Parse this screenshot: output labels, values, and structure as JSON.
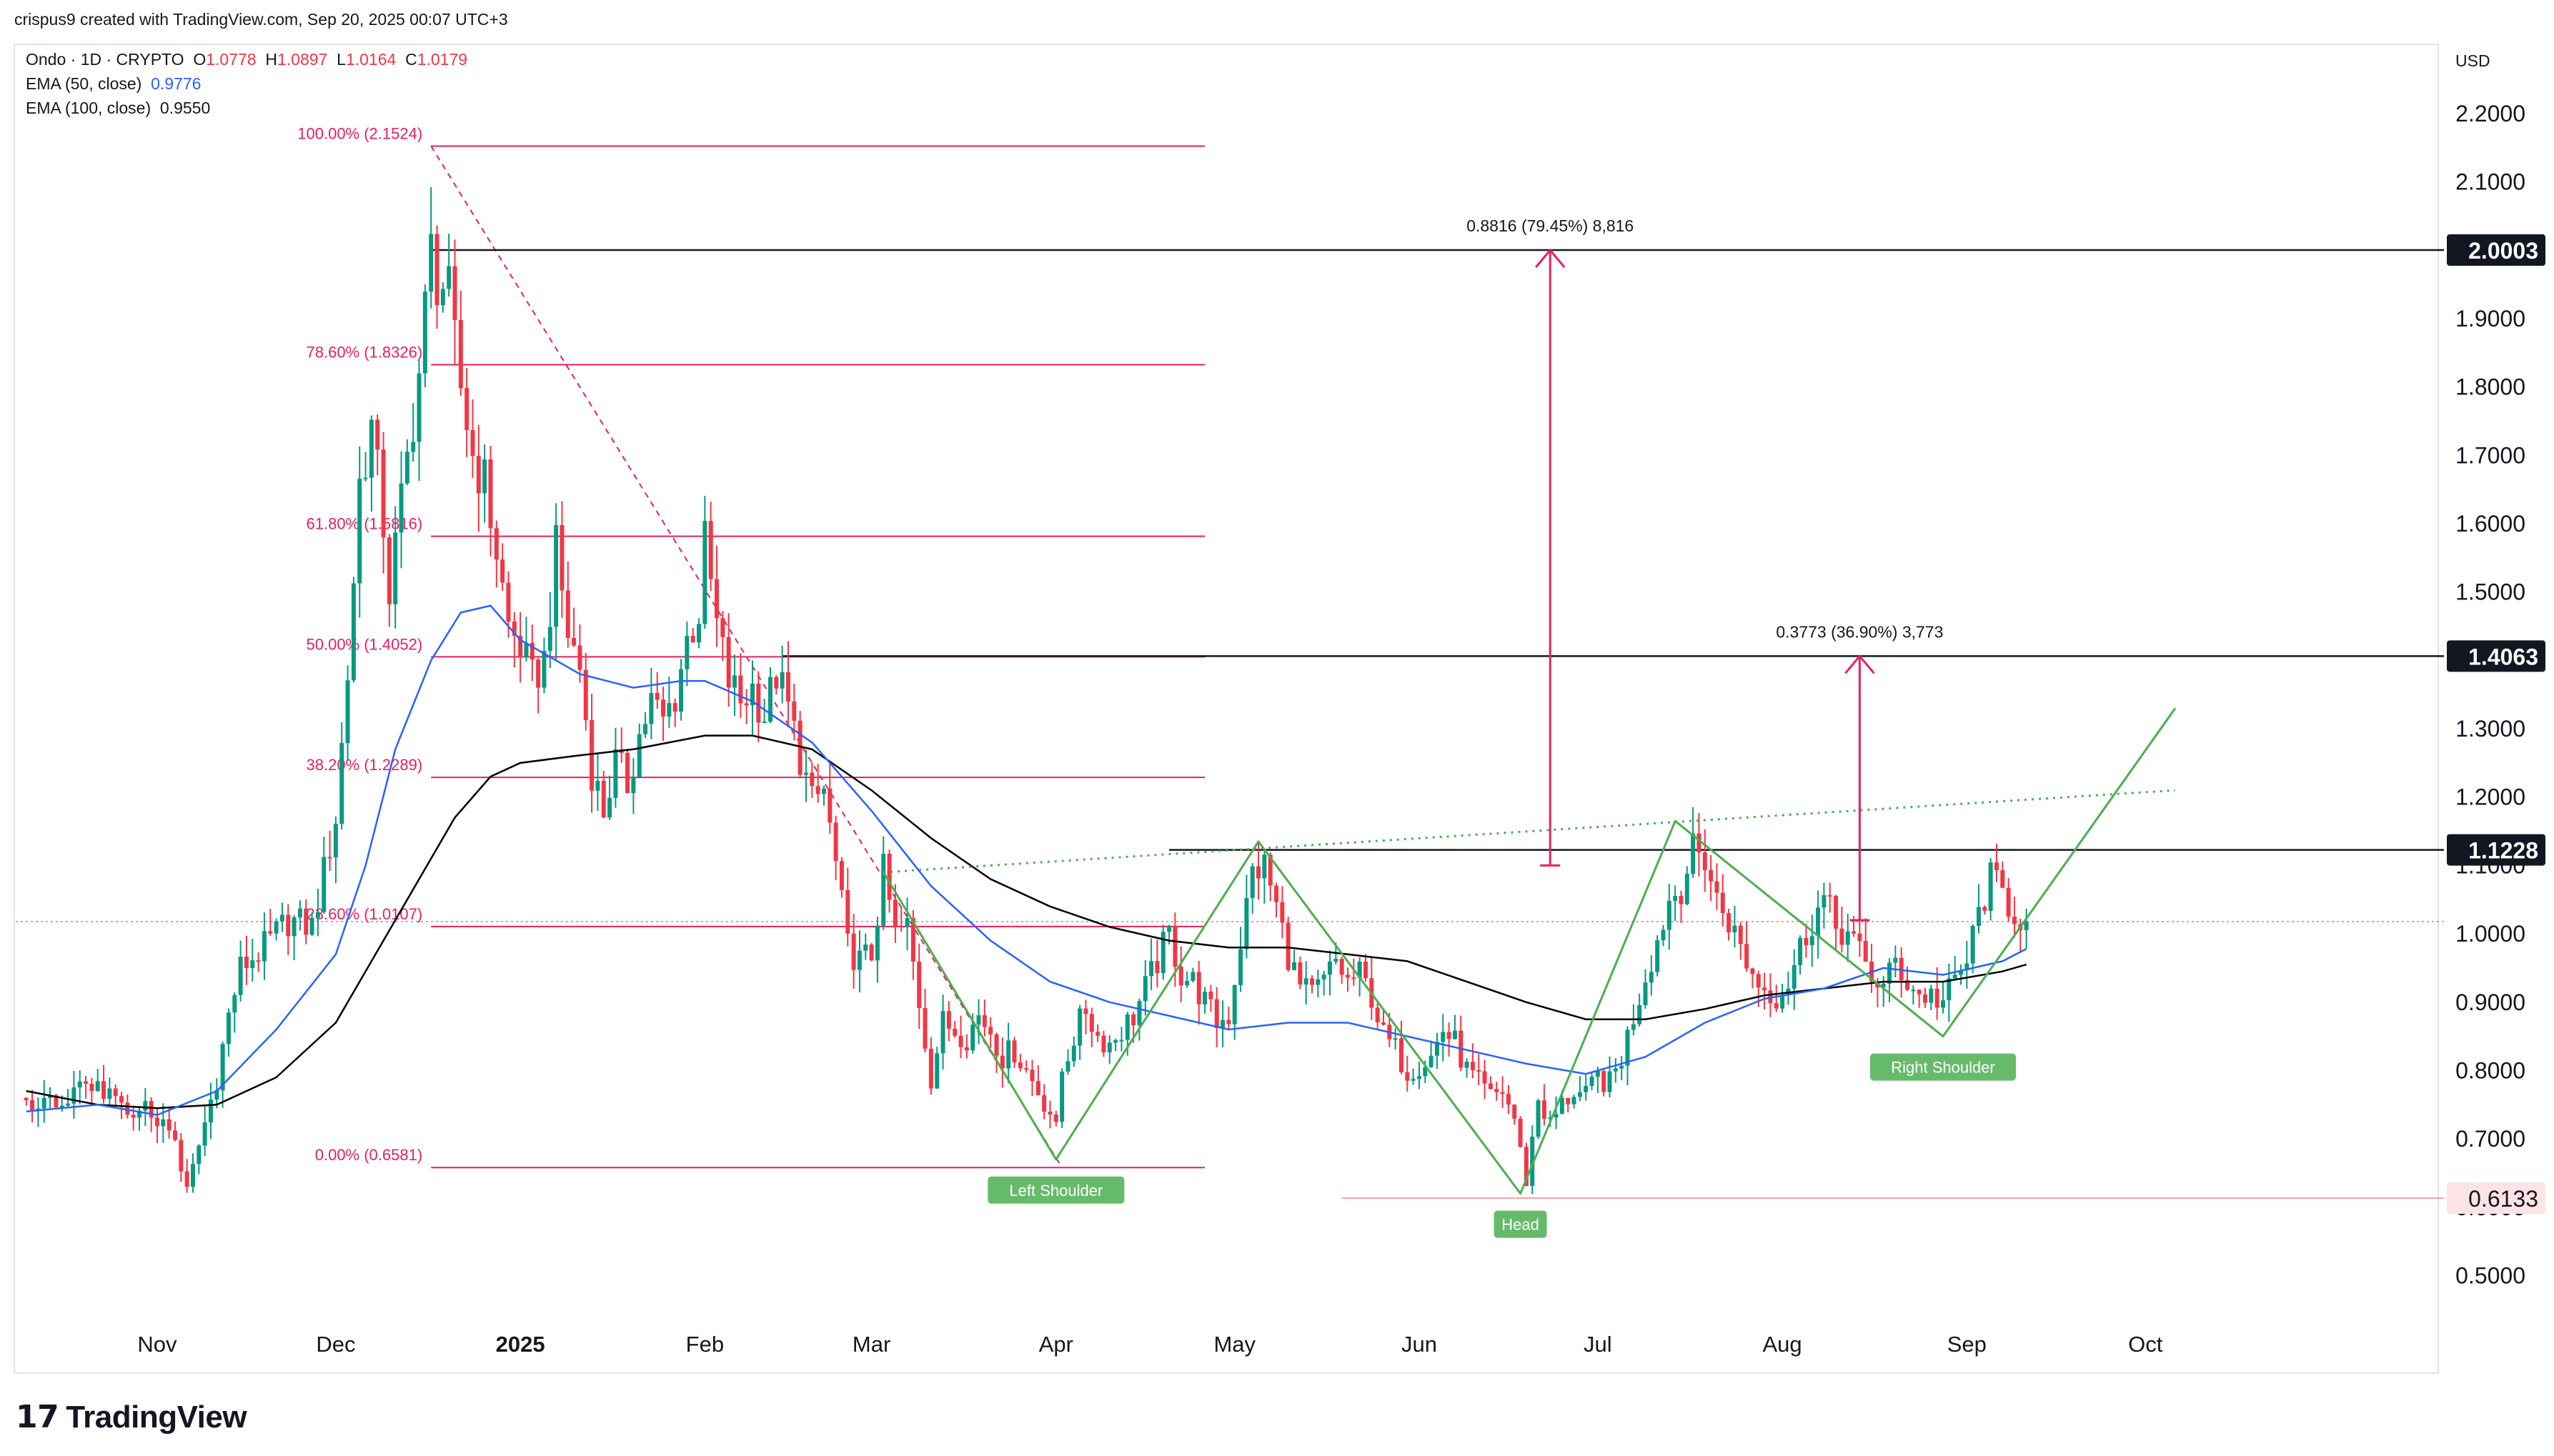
{
  "meta": {
    "created_by": "crispus9 created with TradingView.com, Sep 20, 2025 00:07 UTC+3",
    "symbol_line": "Ondo · 1D · CRYPTO",
    "ohlc": {
      "o_label": "O",
      "o": "1.0778",
      "h_label": "H",
      "h": "1.0897",
      "l_label": "L",
      "l": "1.0164",
      "c_label": "C",
      "c": "1.0179"
    },
    "ema50": {
      "label": "EMA (50, close)",
      "value": "0.9776"
    },
    "ema100": {
      "label": "EMA (100, close)",
      "value": "0.9550"
    },
    "currency": "USD",
    "brand": "TradingView"
  },
  "colors": {
    "up": "#089981",
    "down": "#f23645",
    "fib": "#e91e63",
    "ema50": "#2962ff",
    "ema100": "#000000",
    "pattern": "#4caf50",
    "label_bg": "#66bb6a",
    "axis_text": "#131722"
  },
  "chart_data": {
    "type": "candlestick",
    "title": "Ondo · 1D · CRYPTO",
    "xlabel": "",
    "ylabel": "USD",
    "ylim": [
      0.42,
      2.27
    ],
    "y_ticks": [
      "2.2000",
      "2.1000",
      "2.0000",
      "1.9000",
      "1.8000",
      "1.7000",
      "1.6000",
      "1.5000",
      "1.4000",
      "1.3000",
      "1.2000",
      "1.1000",
      "1.0000",
      "0.9000",
      "0.8000",
      "0.7000",
      "0.6000",
      "0.5000"
    ],
    "x_ticks": [
      {
        "label": "Nov",
        "day": 0
      },
      {
        "label": "Dec",
        "day": 30
      },
      {
        "label": "2025",
        "day": 61
      },
      {
        "label": "Feb",
        "day": 92
      },
      {
        "label": "Mar",
        "day": 120
      },
      {
        "label": "Apr",
        "day": 151
      },
      {
        "label": "May",
        "day": 181
      },
      {
        "label": "Jun",
        "day": 212
      },
      {
        "label": "Jul",
        "day": 242
      },
      {
        "label": "Aug",
        "day": 273
      },
      {
        "label": "Sep",
        "day": 304
      },
      {
        "label": "Oct",
        "day": 334
      }
    ],
    "close_path": [
      [
        -22,
        0.76
      ],
      [
        -16,
        0.74
      ],
      [
        -12,
        0.79
      ],
      [
        -8,
        0.76
      ],
      [
        -4,
        0.72
      ],
      [
        -2,
        0.75
      ],
      [
        3,
        0.7
      ],
      [
        5,
        0.62
      ],
      [
        7,
        0.69
      ],
      [
        10,
        0.79
      ],
      [
        12,
        0.88
      ],
      [
        14,
        0.95
      ],
      [
        18,
        0.98
      ],
      [
        22,
        1.02
      ],
      [
        26,
        1.01
      ],
      [
        30,
        1.17
      ],
      [
        32,
        1.38
      ],
      [
        34,
        1.66
      ],
      [
        36,
        1.74
      ],
      [
        38,
        1.6
      ],
      [
        39,
        1.5
      ],
      [
        41,
        1.63
      ],
      [
        44,
        1.82
      ],
      [
        46,
        2.0
      ],
      [
        47,
        1.96
      ],
      [
        48,
        1.95
      ],
      [
        49,
        1.93
      ],
      [
        50,
        1.86
      ],
      [
        51,
        1.8
      ],
      [
        53,
        1.7
      ],
      [
        55,
        1.66
      ],
      [
        57,
        1.56
      ],
      [
        59,
        1.45
      ],
      [
        61,
        1.42
      ],
      [
        63,
        1.37
      ],
      [
        65,
        1.4
      ],
      [
        67,
        1.56
      ],
      [
        69,
        1.44
      ],
      [
        71,
        1.39
      ],
      [
        73,
        1.24
      ],
      [
        75,
        1.18
      ],
      [
        77,
        1.25
      ],
      [
        79,
        1.22
      ],
      [
        81,
        1.29
      ],
      [
        83,
        1.34
      ],
      [
        85,
        1.31
      ],
      [
        87,
        1.35
      ],
      [
        89,
        1.43
      ],
      [
        91,
        1.47
      ],
      [
        92,
        1.57
      ],
      [
        94,
        1.45
      ],
      [
        96,
        1.37
      ],
      [
        98,
        1.34
      ],
      [
        100,
        1.36
      ],
      [
        102,
        1.32
      ],
      [
        104,
        1.38
      ],
      [
        106,
        1.33
      ],
      [
        108,
        1.26
      ],
      [
        110,
        1.19
      ],
      [
        112,
        1.21
      ],
      [
        114,
        1.1
      ],
      [
        116,
        0.98
      ],
      [
        118,
        0.96
      ],
      [
        120,
        0.97
      ],
      [
        122,
        1.09
      ],
      [
        124,
        1.0
      ],
      [
        126,
        1.01
      ],
      [
        128,
        0.9
      ],
      [
        130,
        0.79
      ],
      [
        132,
        0.87
      ],
      [
        134,
        0.86
      ],
      [
        136,
        0.85
      ],
      [
        138,
        0.88
      ],
      [
        140,
        0.86
      ],
      [
        142,
        0.82
      ],
      [
        144,
        0.83
      ],
      [
        146,
        0.8
      ],
      [
        148,
        0.77
      ],
      [
        150,
        0.74
      ],
      [
        151,
        0.71
      ],
      [
        152,
        0.8
      ],
      [
        154,
        0.85
      ],
      [
        156,
        0.89
      ],
      [
        158,
        0.85
      ],
      [
        160,
        0.84
      ],
      [
        162,
        0.86
      ],
      [
        164,
        0.88
      ],
      [
        166,
        0.92
      ],
      [
        168,
        0.96
      ],
      [
        170,
        1.0
      ],
      [
        172,
        0.94
      ],
      [
        174,
        0.93
      ],
      [
        176,
        0.9
      ],
      [
        178,
        0.87
      ],
      [
        180,
        0.88
      ],
      [
        182,
        0.99
      ],
      [
        184,
        1.09
      ],
      [
        186,
        1.1
      ],
      [
        188,
        1.04
      ],
      [
        190,
        0.97
      ],
      [
        192,
        0.92
      ],
      [
        194,
        0.91
      ],
      [
        196,
        0.93
      ],
      [
        198,
        0.96
      ],
      [
        200,
        0.93
      ],
      [
        202,
        0.94
      ],
      [
        204,
        0.91
      ],
      [
        206,
        0.85
      ],
      [
        208,
        0.83
      ],
      [
        210,
        0.8
      ],
      [
        212,
        0.81
      ],
      [
        214,
        0.82
      ],
      [
        216,
        0.86
      ],
      [
        218,
        0.84
      ],
      [
        220,
        0.8
      ],
      [
        222,
        0.78
      ],
      [
        224,
        0.76
      ],
      [
        226,
        0.77
      ],
      [
        228,
        0.73
      ],
      [
        229,
        0.68
      ],
      [
        230,
        0.64
      ],
      [
        232,
        0.76
      ],
      [
        234,
        0.72
      ],
      [
        236,
        0.75
      ],
      [
        238,
        0.77
      ],
      [
        240,
        0.76
      ],
      [
        242,
        0.79
      ],
      [
        244,
        0.78
      ],
      [
        246,
        0.82
      ],
      [
        248,
        0.88
      ],
      [
        250,
        0.94
      ],
      [
        252,
        0.99
      ],
      [
        254,
        1.05
      ],
      [
        256,
        1.07
      ],
      [
        258,
        1.12
      ],
      [
        260,
        1.11
      ],
      [
        262,
        1.05
      ],
      [
        264,
        1.02
      ],
      [
        266,
        0.98
      ],
      [
        268,
        0.94
      ],
      [
        270,
        0.92
      ],
      [
        272,
        0.91
      ],
      [
        274,
        0.93
      ],
      [
        276,
        0.98
      ],
      [
        278,
        1.02
      ],
      [
        280,
        1.05
      ],
      [
        282,
        1.01
      ],
      [
        284,
        1.0
      ],
      [
        286,
        0.97
      ],
      [
        288,
        0.94
      ],
      [
        290,
        0.92
      ],
      [
        292,
        0.96
      ],
      [
        294,
        0.93
      ],
      [
        296,
        0.91
      ],
      [
        298,
        0.91
      ],
      [
        300,
        0.9
      ],
      [
        302,
        0.93
      ],
      [
        304,
        0.96
      ],
      [
        306,
        1.03
      ],
      [
        308,
        1.08
      ],
      [
        310,
        1.06
      ],
      [
        312,
        1.03
      ],
      [
        314,
        1.02
      ]
    ],
    "ema50_path": [
      [
        -22,
        0.74
      ],
      [
        -10,
        0.75
      ],
      [
        0,
        0.735
      ],
      [
        10,
        0.77
      ],
      [
        20,
        0.86
      ],
      [
        30,
        0.97
      ],
      [
        35,
        1.1
      ],
      [
        40,
        1.27
      ],
      [
        46,
        1.4
      ],
      [
        51,
        1.47
      ],
      [
        56,
        1.48
      ],
      [
        61,
        1.43
      ],
      [
        71,
        1.38
      ],
      [
        80,
        1.36
      ],
      [
        88,
        1.37
      ],
      [
        92,
        1.37
      ],
      [
        100,
        1.34
      ],
      [
        110,
        1.28
      ],
      [
        120,
        1.18
      ],
      [
        130,
        1.07
      ],
      [
        140,
        0.99
      ],
      [
        150,
        0.93
      ],
      [
        160,
        0.9
      ],
      [
        170,
        0.88
      ],
      [
        180,
        0.86
      ],
      [
        190,
        0.87
      ],
      [
        200,
        0.87
      ],
      [
        210,
        0.85
      ],
      [
        220,
        0.83
      ],
      [
        230,
        0.81
      ],
      [
        240,
        0.795
      ],
      [
        250,
        0.82
      ],
      [
        260,
        0.87
      ],
      [
        270,
        0.905
      ],
      [
        280,
        0.92
      ],
      [
        290,
        0.95
      ],
      [
        300,
        0.94
      ],
      [
        310,
        0.96
      ],
      [
        314,
        0.978
      ]
    ],
    "ema100_path": [
      [
        -22,
        0.77
      ],
      [
        -10,
        0.75
      ],
      [
        0,
        0.745
      ],
      [
        10,
        0.75
      ],
      [
        20,
        0.79
      ],
      [
        30,
        0.87
      ],
      [
        40,
        1.02
      ],
      [
        50,
        1.17
      ],
      [
        56,
        1.23
      ],
      [
        61,
        1.25
      ],
      [
        70,
        1.26
      ],
      [
        80,
        1.27
      ],
      [
        92,
        1.29
      ],
      [
        100,
        1.29
      ],
      [
        110,
        1.27
      ],
      [
        120,
        1.21
      ],
      [
        130,
        1.14
      ],
      [
        140,
        1.08
      ],
      [
        150,
        1.04
      ],
      [
        160,
        1.01
      ],
      [
        170,
        0.99
      ],
      [
        180,
        0.98
      ],
      [
        190,
        0.98
      ],
      [
        200,
        0.97
      ],
      [
        210,
        0.96
      ],
      [
        220,
        0.93
      ],
      [
        230,
        0.9
      ],
      [
        240,
        0.875
      ],
      [
        250,
        0.875
      ],
      [
        260,
        0.89
      ],
      [
        270,
        0.91
      ],
      [
        280,
        0.92
      ],
      [
        290,
        0.93
      ],
      [
        300,
        0.93
      ],
      [
        310,
        0.945
      ],
      [
        314,
        0.955
      ]
    ],
    "fibonacci": {
      "levels": [
        {
          "label": "100.00% (2.1524)",
          "value": 2.1524
        },
        {
          "label": "78.60% (1.8326)",
          "value": 1.8326
        },
        {
          "label": "61.80% (1.5816)",
          "value": 1.5816
        },
        {
          "label": "50.00% (1.4052)",
          "value": 1.4052
        },
        {
          "label": "38.20% (1.2289)",
          "value": 1.2289
        },
        {
          "label": "23.60% (1.0107)",
          "value": 1.0107
        },
        {
          "label": "0.00% (0.6581)",
          "value": 0.6581
        }
      ],
      "start_day": 46,
      "end_day": 152
    },
    "trend_diagonal": {
      "from": [
        46,
        2.1524
      ],
      "to": [
        152,
        0.6581
      ]
    },
    "horizontal_levels": [
      {
        "price": 2.0003,
        "label": "2.0003",
        "from_day": 46
      },
      {
        "price": 1.4063,
        "label": "1.4063",
        "from_day": 105
      },
      {
        "price": 1.1228,
        "label": "1.1228",
        "from_day": 170
      },
      {
        "price": 0.6133,
        "label": "0.6133",
        "from_day": 199
      }
    ],
    "current_price": 1.0179,
    "measure_arrows": [
      {
        "label": "0.8816 (79.45%) 8,816",
        "day": 234,
        "from": 1.1,
        "to": 2.0003
      },
      {
        "label": "0.3773 (36.90%) 3,773",
        "day": 286,
        "from": 1.02,
        "to": 1.4063
      }
    ],
    "neckline": {
      "from": [
        122,
        1.09
      ],
      "to": [
        339,
        1.21
      ]
    },
    "pattern_path": [
      [
        122,
        1.09
      ],
      [
        151,
        0.67
      ],
      [
        185,
        1.135
      ],
      [
        229,
        0.62
      ],
      [
        255,
        1.165
      ],
      [
        290,
        0.92
      ],
      [
        300,
        0.85
      ],
      [
        339,
        1.33
      ]
    ],
    "pattern_labels": [
      {
        "text": "Left Shoulder",
        "day": 151,
        "price": 0.67
      },
      {
        "text": "Head",
        "day": 229,
        "price": 0.62
      },
      {
        "text": "Right Shoulder",
        "day": 300,
        "price": 0.85
      }
    ]
  }
}
